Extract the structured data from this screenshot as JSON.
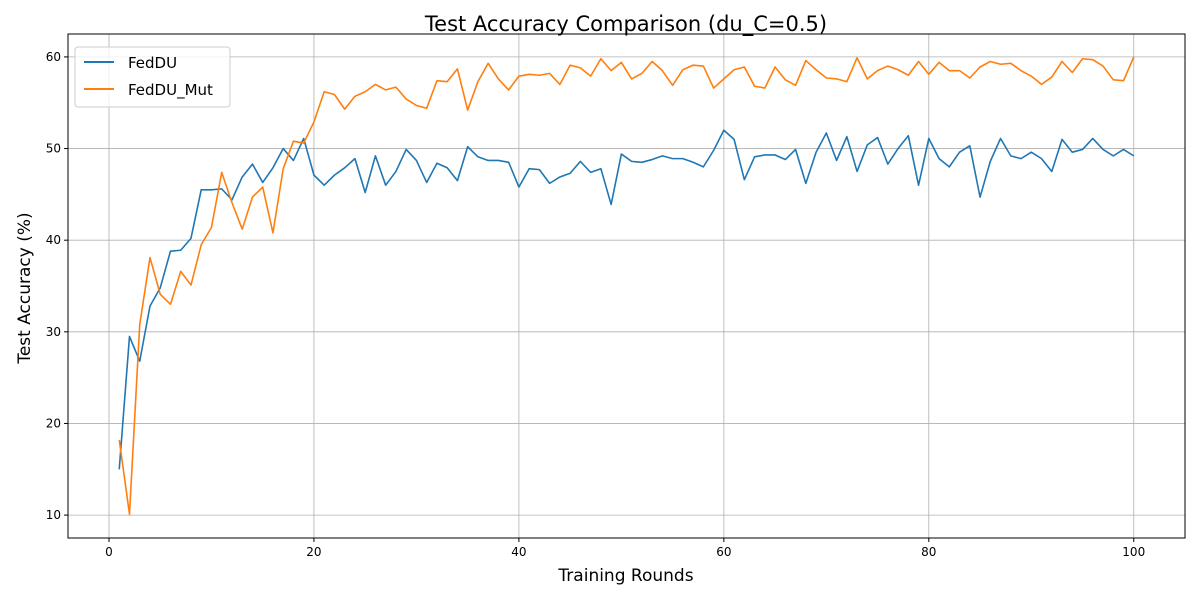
{
  "chart_data": {
    "type": "line",
    "title": "Test Accuracy Comparison (du_C=0.5)",
    "xlabel": "Training Rounds",
    "ylabel": "Test Accuracy (%)",
    "xlim": [
      -4,
      105
    ],
    "ylim": [
      7.5,
      62.5
    ],
    "xticks": [
      0,
      20,
      40,
      60,
      80,
      100
    ],
    "yticks": [
      10,
      20,
      30,
      40,
      50,
      60
    ],
    "grid": true,
    "legend_position": "upper-left",
    "x": [
      1,
      2,
      3,
      4,
      5,
      6,
      7,
      8,
      9,
      10,
      11,
      12,
      13,
      14,
      15,
      16,
      17,
      18,
      19,
      20,
      21,
      22,
      23,
      24,
      25,
      26,
      27,
      28,
      29,
      30,
      31,
      32,
      33,
      34,
      35,
      36,
      37,
      38,
      39,
      40,
      41,
      42,
      43,
      44,
      45,
      46,
      47,
      48,
      49,
      50,
      51,
      52,
      53,
      54,
      55,
      56,
      57,
      58,
      59,
      60,
      61,
      62,
      63,
      64,
      65,
      66,
      67,
      68,
      69,
      70,
      71,
      72,
      73,
      74,
      75,
      76,
      77,
      78,
      79,
      80,
      81,
      82,
      83,
      84,
      85,
      86,
      87,
      88,
      89,
      90,
      91,
      92,
      93,
      94,
      95,
      96,
      97,
      98,
      99,
      100
    ],
    "series": [
      {
        "name": "FedDU",
        "color": "#1f77b4",
        "values": [
          15.0,
          29.5,
          26.8,
          32.8,
          34.8,
          38.8,
          38.9,
          40.2,
          45.5,
          45.5,
          45.6,
          44.4,
          46.9,
          48.3,
          46.3,
          47.9,
          50.0,
          48.7,
          51.1,
          47.1,
          46.0,
          47.1,
          47.9,
          48.9,
          45.2,
          49.2,
          46.0,
          47.5,
          49.9,
          48.7,
          46.3,
          48.4,
          47.9,
          46.5,
          50.2,
          49.1,
          48.7,
          48.7,
          48.5,
          45.8,
          47.8,
          47.7,
          46.2,
          46.9,
          47.3,
          48.6,
          47.4,
          47.8,
          43.9,
          49.4,
          48.6,
          48.5,
          48.8,
          49.2,
          48.9,
          48.9,
          48.5,
          48.0,
          49.8,
          52.0,
          51.0,
          46.6,
          49.1,
          49.3,
          49.3,
          48.8,
          49.9,
          46.2,
          49.6,
          51.7,
          48.7,
          51.3,
          47.5,
          50.4,
          51.2,
          48.3,
          50.0,
          51.4,
          46.0,
          51.1,
          48.9,
          48.0,
          49.6,
          50.3,
          44.7,
          48.6,
          51.1,
          49.2,
          48.9,
          49.6,
          48.9,
          47.5,
          51.0,
          49.6,
          49.9,
          51.1,
          49.9,
          49.2,
          49.9,
          49.2
        ]
      },
      {
        "name": "FedDU_Mut",
        "color": "#ff7f0e",
        "values": [
          18.2,
          10.1,
          30.8,
          38.1,
          34.1,
          33.0,
          36.6,
          35.1,
          39.5,
          41.4,
          47.4,
          44.1,
          41.2,
          44.7,
          45.8,
          40.8,
          47.8,
          50.8,
          50.6,
          52.9,
          56.2,
          55.9,
          54.3,
          55.7,
          56.2,
          57.0,
          56.4,
          56.7,
          55.4,
          54.7,
          54.4,
          57.4,
          57.3,
          58.7,
          54.2,
          57.3,
          59.3,
          57.6,
          56.4,
          57.9,
          58.1,
          58.0,
          58.2,
          57.0,
          59.1,
          58.8,
          57.9,
          59.8,
          58.5,
          59.4,
          57.6,
          58.2,
          59.5,
          58.5,
          56.9,
          58.6,
          59.1,
          59.0,
          56.6,
          57.6,
          58.6,
          58.9,
          56.8,
          56.6,
          58.9,
          57.5,
          56.9,
          59.6,
          58.6,
          57.7,
          57.6,
          57.3,
          59.9,
          57.6,
          58.5,
          59.0,
          58.6,
          58.0,
          59.5,
          58.1,
          59.4,
          58.5,
          58.5,
          57.7,
          58.9,
          59.5,
          59.2,
          59.3,
          58.5,
          57.9,
          57.0,
          57.8,
          59.5,
          58.3,
          59.8,
          59.7,
          59.0,
          57.5,
          57.4,
          60.0
        ]
      }
    ]
  }
}
